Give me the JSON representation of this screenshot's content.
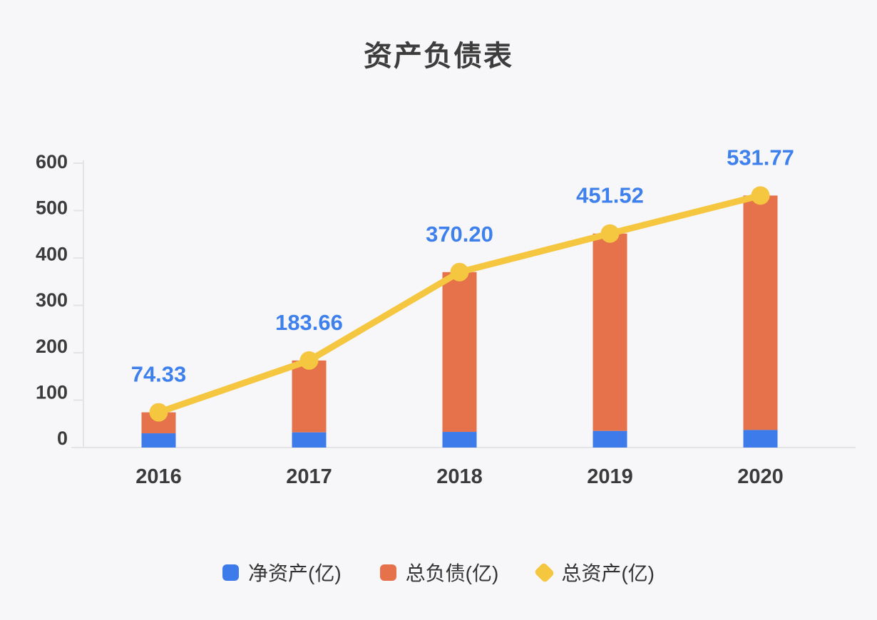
{
  "title": "资产负债表",
  "chart_data": {
    "type": "bar",
    "subtype": "stacked-bar-with-line-overlay",
    "categories": [
      "2016",
      "2017",
      "2018",
      "2019",
      "2020"
    ],
    "series": [
      {
        "name": "净资产(亿)",
        "type": "bar",
        "stack": true,
        "color": "#3d7beb",
        "values": [
          30,
          32,
          33,
          35,
          37
        ]
      },
      {
        "name": "总负债(亿)",
        "type": "bar",
        "stack": true,
        "color": "#e5724b",
        "values": [
          44.33,
          151.66,
          337.2,
          416.52,
          494.77
        ]
      },
      {
        "name": "总资产(亿)",
        "type": "line",
        "color": "#f5c63f",
        "values": [
          74.33,
          183.66,
          370.2,
          451.52,
          531.77
        ],
        "labels": [
          "74.33",
          "183.66",
          "370.20",
          "451.52",
          "531.77"
        ],
        "label_color": "#3e80ec"
      }
    ],
    "title": "资产负债表",
    "xlabel": "",
    "ylabel": "",
    "ylim": [
      0,
      600
    ],
    "yticks": [
      0,
      100,
      200,
      300,
      400,
      500,
      600
    ],
    "grid": false,
    "legend_position": "bottom",
    "axis_color": "#e3e3e8",
    "background": "#f7f7f9"
  }
}
